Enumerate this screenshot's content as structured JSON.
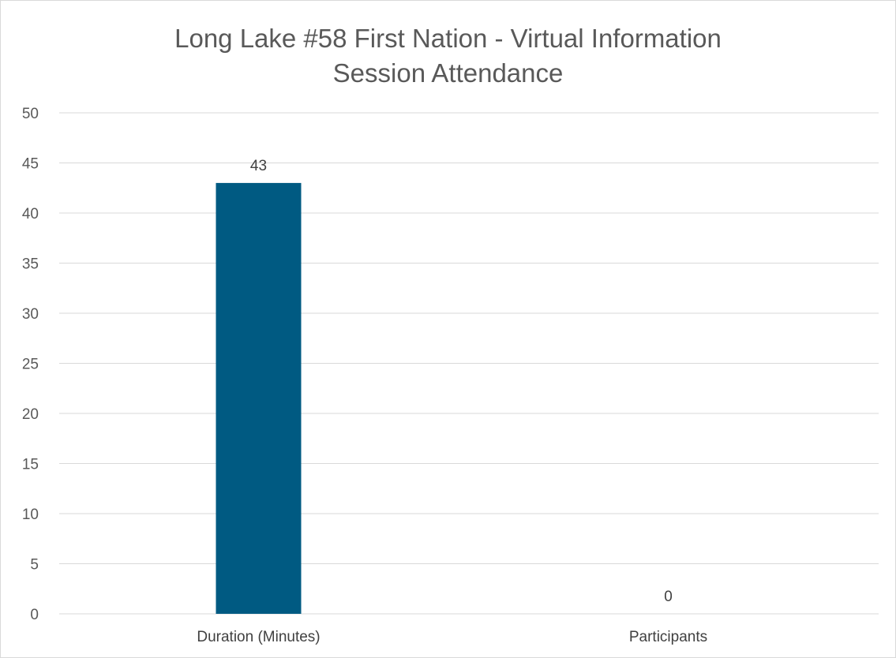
{
  "chart_data": {
    "type": "bar",
    "title_lines": [
      "Long Lake #58 First Nation - Virtual Information",
      "Session Attendance"
    ],
    "categories": [
      "Duration (Minutes)",
      "Participants"
    ],
    "values": [
      43,
      0
    ],
    "data_labels": [
      "43",
      "0"
    ],
    "ylim": [
      0,
      50
    ],
    "yticks": [
      0,
      5,
      10,
      15,
      20,
      25,
      30,
      35,
      40,
      45,
      50
    ],
    "grid": true,
    "legend": "none",
    "bar_color": "#005A82",
    "grid_color": "#d9d9d9"
  }
}
